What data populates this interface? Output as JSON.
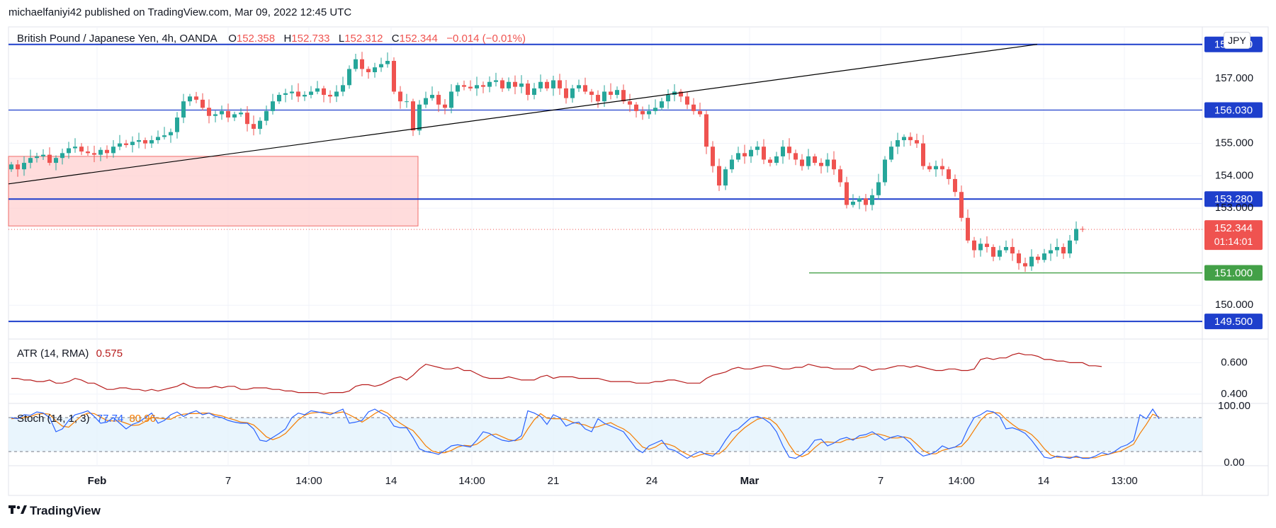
{
  "header": {
    "publisher_line": "michaelfaniyi42 published on TradingView.com, Mar 09, 2022 12:45 UTC"
  },
  "footer": {
    "brand": "TradingView"
  },
  "legend": {
    "symbol": "British Pound / Japanese Yen, 4h, OANDA",
    "o_label": "O",
    "o_value": "152.358",
    "h_label": "H",
    "h_value": "152.733",
    "l_label": "L",
    "l_value": "152.312",
    "c_label": "C",
    "c_value": "152.344",
    "change": "−0.014 (−0.01%)"
  },
  "currency_badge": "JPY",
  "colors": {
    "up": "#26a69a",
    "down": "#ef5350",
    "level_line": "#1e3fcc",
    "trendline": "#000000",
    "zone_fill": "#ffd6d6",
    "zone_border": "#ef5350",
    "support_green": "#43a047",
    "atr": "#b71c1c",
    "stoch_k": "#2962ff",
    "stoch_d": "#f57c00"
  },
  "price_badges": {
    "current_price": "152.344",
    "countdown": "01:14:01"
  },
  "atr_legend": {
    "label": "ATR (14, RMA)",
    "value": "0.575"
  },
  "stoch_legend": {
    "label": "Stoch (14, 1, 3)",
    "k": "77.74",
    "d": "80.96"
  },
  "chart_data": {
    "type": "candlestick",
    "title": "British Pound / Japanese Yen, 4h, OANDA",
    "ylim": [
      149.0,
      158.6
    ],
    "y_ticks": [
      "157.000",
      "155.000",
      "154.000",
      "153.000",
      "150.000"
    ],
    "x_ticks": [
      "Feb",
      "7",
      "14:00",
      "14",
      "14:00",
      "21",
      "24",
      "Mar",
      "7",
      "14:00",
      "14",
      "13:00"
    ],
    "horizontal_levels": [
      {
        "price": 158.06,
        "label": "158.060",
        "style": "thick"
      },
      {
        "price": 156.03,
        "label": "156.030",
        "style": "thin"
      },
      {
        "price": 153.28,
        "label": "153.280",
        "style": "thick"
      },
      {
        "price": 149.5,
        "label": "149.500",
        "style": "thick"
      }
    ],
    "support_level": {
      "price": 151.0,
      "label": "151.000"
    },
    "current_price": 152.344,
    "trendline": {
      "from": {
        "bar": 0,
        "price": 153.75
      },
      "to": {
        "bar": 188,
        "price": 158.06
      }
    },
    "supply_zone": {
      "from_bar": 0,
      "to_bar": 82,
      "top": 154.6,
      "bottom": 152.45
    },
    "closes": [
      154.35,
      154.2,
      154.4,
      154.55,
      154.6,
      154.65,
      154.4,
      154.55,
      154.7,
      154.85,
      154.9,
      154.75,
      154.7,
      154.65,
      154.8,
      154.7,
      154.9,
      155.0,
      154.95,
      155.05,
      155.1,
      155.0,
      155.1,
      155.2,
      155.25,
      155.35,
      155.8,
      156.3,
      156.45,
      156.35,
      156.1,
      155.85,
      155.9,
      156.0,
      155.8,
      155.9,
      155.95,
      155.6,
      155.45,
      155.7,
      156.0,
      156.3,
      156.5,
      156.55,
      156.6,
      156.45,
      156.5,
      156.6,
      156.7,
      156.5,
      156.45,
      156.6,
      156.8,
      157.3,
      157.6,
      157.3,
      157.2,
      157.35,
      157.45,
      157.55,
      156.6,
      156.3,
      156.3,
      155.4,
      156.2,
      156.4,
      156.5,
      156.2,
      156.1,
      156.6,
      156.8,
      156.75,
      156.7,
      156.8,
      156.75,
      156.9,
      156.95,
      156.7,
      156.9,
      156.75,
      156.85,
      156.5,
      156.7,
      156.9,
      156.7,
      156.95,
      156.7,
      156.4,
      156.7,
      156.8,
      156.6,
      156.5,
      156.3,
      156.6,
      156.5,
      156.65,
      156.3,
      156.2,
      156.0,
      155.9,
      156.0,
      156.1,
      156.3,
      156.5,
      156.6,
      156.45,
      156.2,
      156.0,
      155.9,
      154.9,
      154.3,
      153.7,
      154.2,
      154.5,
      154.7,
      154.6,
      154.8,
      154.9,
      154.5,
      154.4,
      154.6,
      154.9,
      154.7,
      154.5,
      154.3,
      154.6,
      154.4,
      154.3,
      154.5,
      154.2,
      153.8,
      153.1,
      153.2,
      153.3,
      153.1,
      153.4,
      153.8,
      154.5,
      154.9,
      155.1,
      155.2,
      155.1,
      155.0,
      154.3,
      154.2,
      154.3,
      154.2,
      153.9,
      153.5,
      152.7,
      152.0,
      151.7,
      151.9,
      151.8,
      151.5,
      151.7,
      151.8,
      151.6,
      151.3,
      151.2,
      151.5,
      151.4,
      151.6,
      151.7,
      151.8,
      151.6,
      152.0,
      152.358,
      152.344
    ],
    "atr_series": {
      "name": "ATR (14, RMA)",
      "last_value": 0.575,
      "ylim": [
        0.35,
        0.75
      ],
      "y_ticks": [
        "0.600",
        "0.400"
      ],
      "values": [
        0.5,
        0.5,
        0.49,
        0.49,
        0.48,
        0.48,
        0.49,
        0.47,
        0.47,
        0.48,
        0.5,
        0.49,
        0.47,
        0.47,
        0.45,
        0.43,
        0.43,
        0.44,
        0.44,
        0.43,
        0.43,
        0.42,
        0.43,
        0.42,
        0.43,
        0.44,
        0.45,
        0.47,
        0.45,
        0.44,
        0.44,
        0.44,
        0.45,
        0.44,
        0.45,
        0.45,
        0.43,
        0.43,
        0.44,
        0.44,
        0.44,
        0.43,
        0.43,
        0.42,
        0.42,
        0.41,
        0.41,
        0.41,
        0.41,
        0.4,
        0.41,
        0.41,
        0.41,
        0.42,
        0.45,
        0.46,
        0.46,
        0.45,
        0.46,
        0.48,
        0.5,
        0.51,
        0.49,
        0.52,
        0.56,
        0.59,
        0.58,
        0.57,
        0.56,
        0.56,
        0.57,
        0.55,
        0.55,
        0.53,
        0.51,
        0.5,
        0.5,
        0.5,
        0.51,
        0.5,
        0.49,
        0.49,
        0.49,
        0.51,
        0.52,
        0.5,
        0.51,
        0.51,
        0.51,
        0.5,
        0.5,
        0.5,
        0.5,
        0.49,
        0.48,
        0.48,
        0.48,
        0.48,
        0.47,
        0.47,
        0.47,
        0.48,
        0.48,
        0.49,
        0.49,
        0.48,
        0.47,
        0.47,
        0.47,
        0.5,
        0.52,
        0.53,
        0.54,
        0.56,
        0.57,
        0.56,
        0.56,
        0.57,
        0.58,
        0.58,
        0.57,
        0.56,
        0.56,
        0.57,
        0.57,
        0.59,
        0.58,
        0.57,
        0.57,
        0.56,
        0.56,
        0.56,
        0.56,
        0.58,
        0.57,
        0.55,
        0.56,
        0.56,
        0.57,
        0.58,
        0.58,
        0.57,
        0.58,
        0.57,
        0.56,
        0.55,
        0.55,
        0.56,
        0.56,
        0.55,
        0.55,
        0.56,
        0.62,
        0.63,
        0.62,
        0.63,
        0.63,
        0.65,
        0.66,
        0.65,
        0.65,
        0.64,
        0.62,
        0.62,
        0.61,
        0.61,
        0.6,
        0.6,
        0.6,
        0.58,
        0.58,
        0.575
      ]
    },
    "stoch_series": {
      "name": "Stoch (14, 1, 3)",
      "ylim": [
        -5,
        105
      ],
      "y_ticks": [
        "100.00",
        "0.00"
      ],
      "bands": [
        80,
        20
      ],
      "k_last": 77.74,
      "d_last": 80.96,
      "k": [
        80,
        78,
        85,
        84,
        90,
        88,
        80,
        55,
        60,
        75,
        85,
        88,
        92,
        82,
        70,
        72,
        80,
        70,
        60,
        68,
        72,
        80,
        88,
        70,
        75,
        85,
        90,
        82,
        88,
        92,
        85,
        88,
        82,
        80,
        75,
        72,
        70,
        70,
        60,
        40,
        38,
        45,
        52,
        60,
        80,
        88,
        85,
        92,
        90,
        88,
        85,
        90,
        95,
        70,
        72,
        75,
        90,
        95,
        88,
        82,
        65,
        62,
        62,
        45,
        25,
        20,
        18,
        15,
        22,
        30,
        32,
        30,
        28,
        40,
        55,
        52,
        45,
        40,
        38,
        40,
        48,
        92,
        88,
        82,
        68,
        85,
        80,
        65,
        70,
        72,
        60,
        55,
        78,
        70,
        65,
        60,
        55,
        40,
        25,
        18,
        30,
        35,
        40,
        25,
        22,
        15,
        8,
        15,
        20,
        15,
        12,
        22,
        40,
        55,
        60,
        70,
        80,
        82,
        78,
        70,
        55,
        30,
        10,
        8,
        15,
        25,
        40,
        42,
        30,
        35,
        42,
        45,
        40,
        48,
        50,
        55,
        48,
        40,
        45,
        48,
        45,
        35,
        20,
        12,
        15,
        20,
        30,
        25,
        28,
        35,
        60,
        80,
        85,
        92,
        90,
        82,
        60,
        62,
        58,
        52,
        40,
        25,
        10,
        8,
        12,
        10,
        8,
        12,
        8,
        8,
        12,
        18,
        15,
        20,
        28,
        32,
        40,
        85,
        78,
        95,
        77.74
      ],
      "d": [
        78,
        79,
        80,
        82,
        86,
        87,
        86,
        74,
        65,
        63,
        73,
        83,
        88,
        87,
        81,
        75,
        74,
        74,
        70,
        66,
        67,
        73,
        80,
        79,
        78,
        77,
        83,
        86,
        87,
        87,
        88,
        88,
        85,
        83,
        79,
        76,
        72,
        71,
        67,
        57,
        46,
        41,
        45,
        52,
        64,
        76,
        84,
        88,
        89,
        90,
        88,
        88,
        90,
        85,
        79,
        72,
        79,
        87,
        93,
        88,
        78,
        70,
        63,
        57,
        44,
        30,
        21,
        18,
        18,
        22,
        28,
        31,
        30,
        33,
        41,
        49,
        51,
        46,
        41,
        39,
        42,
        60,
        76,
        87,
        79,
        78,
        78,
        77,
        72,
        69,
        67,
        62,
        64,
        68,
        71,
        65,
        60,
        52,
        40,
        28,
        24,
        28,
        35,
        33,
        29,
        21,
        15,
        10,
        14,
        17,
        16,
        16,
        25,
        39,
        52,
        62,
        70,
        77,
        80,
        77,
        68,
        52,
        32,
        16,
        11,
        16,
        27,
        36,
        37,
        36,
        36,
        41,
        42,
        44,
        46,
        51,
        51,
        48,
        44,
        44,
        46,
        43,
        33,
        22,
        16,
        16,
        22,
        25,
        28,
        29,
        41,
        58,
        75,
        86,
        89,
        88,
        77,
        68,
        60,
        57,
        50,
        39,
        25,
        14,
        10,
        10,
        10,
        10,
        9,
        9,
        9,
        13,
        15,
        18,
        21,
        27,
        33,
        52,
        68,
        86,
        80.96
      ]
    }
  }
}
